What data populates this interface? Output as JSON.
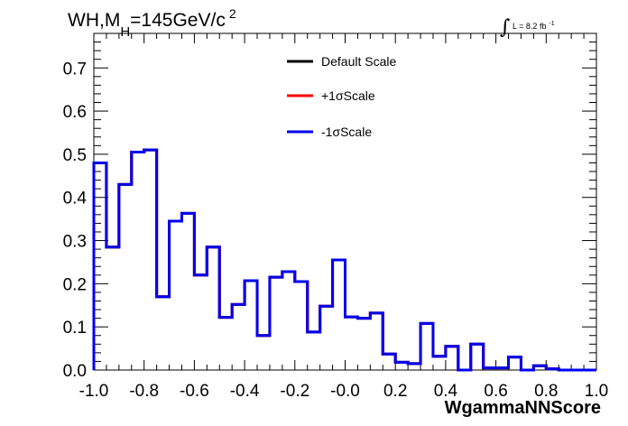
{
  "chart_data": {
    "type": "line",
    "title": {
      "main": "WH,M",
      "subscript": "H",
      "rest": "=145GeV/c",
      "superscript": "2"
    },
    "luminosity": {
      "integral_sign": "∫",
      "text": "L = 8.2 fb",
      "superscript": "-1"
    },
    "xlabel": "WgammaNNScore",
    "xlim": [
      -1.0,
      1.0
    ],
    "ylim": [
      0.0,
      0.78
    ],
    "x_ticks": [
      "-1.0",
      "-0.8",
      "-0.6",
      "-0.4",
      "-0.2",
      "-0.0",
      "0.2",
      "0.4",
      "0.6",
      "0.8",
      "1.0"
    ],
    "x_tick_values": [
      -1.0,
      -0.8,
      -0.6,
      -0.4,
      -0.2,
      0.0,
      0.2,
      0.4,
      0.6,
      0.8,
      1.0
    ],
    "y_ticks": [
      "0.0",
      "0.1",
      "0.2",
      "0.3",
      "0.4",
      "0.5",
      "0.6",
      "0.7"
    ],
    "y_tick_values": [
      0.0,
      0.1,
      0.2,
      0.3,
      0.4,
      0.5,
      0.6,
      0.7
    ],
    "legend_position": "top-center",
    "bin_edges": [
      -1.0,
      -0.95,
      -0.9,
      -0.85,
      -0.8,
      -0.75,
      -0.7,
      -0.65,
      -0.6,
      -0.55,
      -0.5,
      -0.45,
      -0.4,
      -0.35,
      -0.3,
      -0.25,
      -0.2,
      -0.15,
      -0.1,
      -0.05,
      0.0,
      0.05,
      0.1,
      0.15,
      0.2,
      0.25,
      0.3,
      0.35,
      0.4,
      0.45,
      0.5,
      0.55,
      0.6,
      0.65,
      0.7,
      0.75,
      0.8,
      0.85,
      0.9,
      0.95,
      1.0
    ],
    "series": [
      {
        "name": "Default Scale",
        "color": "#000000",
        "values": [
          0.48,
          0.285,
          0.43,
          0.505,
          0.51,
          0.17,
          0.345,
          0.363,
          0.22,
          0.285,
          0.122,
          0.152,
          0.207,
          0.08,
          0.215,
          0.228,
          0.205,
          0.088,
          0.148,
          0.255,
          0.123,
          0.12,
          0.132,
          0.037,
          0.018,
          0.015,
          0.108,
          0.032,
          0.055,
          0.0,
          0.06,
          0.005,
          0.005,
          0.03,
          0.0,
          0.01,
          0.003,
          0.0,
          0.0,
          0.0
        ]
      },
      {
        "name": "+1σScale",
        "color": "#ff0000",
        "values": [
          0.48,
          0.285,
          0.43,
          0.505,
          0.51,
          0.17,
          0.345,
          0.363,
          0.22,
          0.285,
          0.122,
          0.152,
          0.207,
          0.08,
          0.215,
          0.228,
          0.205,
          0.088,
          0.148,
          0.255,
          0.123,
          0.12,
          0.132,
          0.037,
          0.018,
          0.015,
          0.108,
          0.032,
          0.055,
          0.0,
          0.06,
          0.005,
          0.005,
          0.03,
          0.0,
          0.01,
          0.003,
          0.0,
          0.0,
          0.0
        ]
      },
      {
        "name": "-1σScale",
        "color": "#0000ee",
        "values": [
          0.48,
          0.285,
          0.43,
          0.505,
          0.51,
          0.17,
          0.345,
          0.363,
          0.22,
          0.285,
          0.122,
          0.152,
          0.207,
          0.08,
          0.215,
          0.228,
          0.205,
          0.088,
          0.148,
          0.255,
          0.123,
          0.12,
          0.132,
          0.037,
          0.018,
          0.015,
          0.108,
          0.032,
          0.055,
          0.0,
          0.06,
          0.005,
          0.005,
          0.03,
          0.0,
          0.01,
          0.003,
          0.0,
          0.0,
          0.0
        ]
      }
    ]
  }
}
